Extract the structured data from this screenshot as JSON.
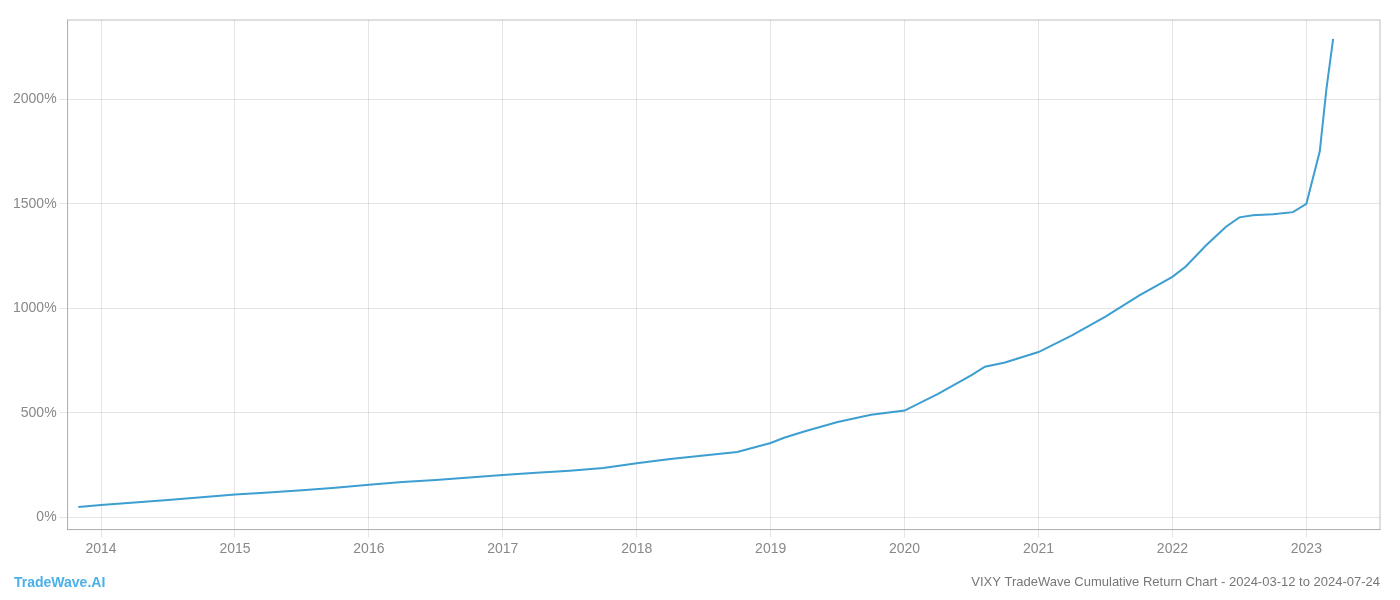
{
  "chart_data": {
    "type": "line",
    "title": "VIXY TradeWave Cumulative Return Chart - 2024-03-12 to 2024-07-24",
    "annotations": [
      {
        "text": "TradeWave.AI",
        "color": "#4ab0e8"
      }
    ],
    "x": [
      2013.83,
      2014.0,
      2014.25,
      2014.5,
      2014.75,
      2015.0,
      2015.25,
      2015.5,
      2015.75,
      2016.0,
      2016.25,
      2016.5,
      2016.75,
      2017.0,
      2017.25,
      2017.5,
      2017.75,
      2018.0,
      2018.25,
      2018.5,
      2018.75,
      2019.0,
      2019.1,
      2019.25,
      2019.5,
      2019.75,
      2020.0,
      2020.25,
      2020.5,
      2020.6,
      2020.75,
      2021.0,
      2021.25,
      2021.5,
      2021.75,
      2022.0,
      2022.1,
      2022.25,
      2022.4,
      2022.5,
      2022.6,
      2022.75,
      2022.9,
      2023.0,
      2023.1,
      2023.15,
      2023.2
    ],
    "values": [
      48,
      58,
      70,
      82,
      95,
      108,
      118,
      128,
      140,
      155,
      168,
      178,
      190,
      202,
      212,
      222,
      235,
      258,
      278,
      295,
      312,
      355,
      380,
      410,
      455,
      490,
      510,
      590,
      680,
      720,
      740,
      790,
      870,
      960,
      1060,
      1150,
      1200,
      1300,
      1390,
      1435,
      1445,
      1450,
      1460,
      1500,
      1750,
      2050,
      2290
    ],
    "color": "#3d9ed1",
    "xlim": [
      2013.75,
      2023.55
    ],
    "xticks": [
      2014,
      2015,
      2016,
      2017,
      2018,
      2019,
      2020,
      2021,
      2022,
      2023
    ],
    "ylim": [
      -60,
      2380
    ],
    "yticks": [
      {
        "value": 0,
        "label": "0%"
      },
      {
        "value": 500,
        "label": "500%"
      },
      {
        "value": 1000,
        "label": "1000%"
      },
      {
        "value": 1500,
        "label": "1500%"
      },
      {
        "value": 2000,
        "label": "2000%"
      }
    ],
    "grid": true
  }
}
